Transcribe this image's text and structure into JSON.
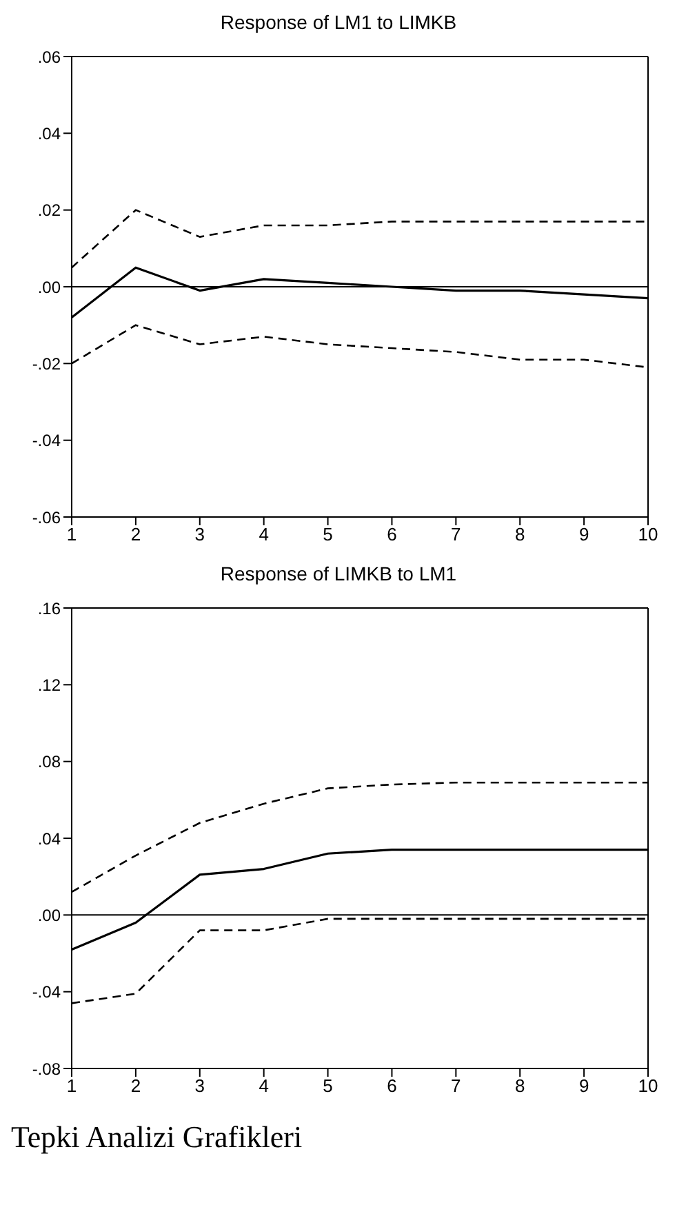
{
  "chart_data": [
    {
      "type": "line",
      "title": "Response of LM1 to LIMKB",
      "x": [
        1,
        2,
        3,
        4,
        5,
        6,
        7,
        8,
        9,
        10
      ],
      "series": [
        {
          "color": "#000000",
          "line_style": "solid",
          "values": [
            -0.008,
            0.005,
            -0.001,
            0.002,
            0.001,
            0.0,
            -0.001,
            -0.001,
            -0.002,
            -0.003
          ]
        },
        {
          "color": "#000000",
          "line_style": "dashed",
          "values": [
            0.005,
            0.02,
            0.013,
            0.016,
            0.016,
            0.017,
            0.017,
            0.017,
            0.017,
            0.017
          ]
        },
        {
          "color": "#000000",
          "line_style": "dashed",
          "values": [
            -0.02,
            -0.01,
            -0.015,
            -0.013,
            -0.015,
            -0.016,
            -0.017,
            -0.019,
            -0.019,
            -0.021
          ]
        }
      ],
      "xlim": [
        1,
        10
      ],
      "xticks": [
        1,
        2,
        3,
        4,
        5,
        6,
        7,
        8,
        9,
        10
      ],
      "ylim": [
        -0.06,
        0.06
      ],
      "yticks": [
        {
          "value": -0.06,
          "label": "-.06"
        },
        {
          "value": -0.04,
          "label": "-.04"
        },
        {
          "value": -0.02,
          "label": "-.02"
        },
        {
          "value": 0,
          "label": ".00"
        },
        {
          "value": 0.02,
          "label": ".02"
        },
        {
          "value": 0.04,
          "label": ".04"
        },
        {
          "value": 0.06,
          "label": ".06"
        }
      ],
      "ref_lines": [
        {
          "axis": "y",
          "value": 0,
          "color": "#000000"
        }
      ],
      "grid": false,
      "legend": false,
      "marker": "none"
    },
    {
      "type": "line",
      "title": "Response of LIMKB to LM1",
      "x": [
        1,
        2,
        3,
        4,
        5,
        6,
        7,
        8,
        9,
        10
      ],
      "series": [
        {
          "color": "#000000",
          "line_style": "solid",
          "values": [
            -0.018,
            -0.004,
            0.021,
            0.024,
            0.032,
            0.034,
            0.034,
            0.034,
            0.034,
            0.034
          ]
        },
        {
          "color": "#000000",
          "line_style": "dashed",
          "values": [
            0.012,
            0.031,
            0.048,
            0.058,
            0.066,
            0.068,
            0.069,
            0.069,
            0.069,
            0.069
          ]
        },
        {
          "color": "#000000",
          "line_style": "dashed",
          "values": [
            -0.046,
            -0.041,
            -0.008,
            -0.008,
            -0.002,
            -0.002,
            -0.002,
            -0.002,
            -0.002,
            -0.002
          ]
        }
      ],
      "xlim": [
        1,
        10
      ],
      "xticks": [
        1,
        2,
        3,
        4,
        5,
        6,
        7,
        8,
        9,
        10
      ],
      "ylim": [
        -0.08,
        0.16
      ],
      "yticks": [
        {
          "value": -0.08,
          "label": "-.08"
        },
        {
          "value": -0.04,
          "label": "-.04"
        },
        {
          "value": 0,
          "label": ".00"
        },
        {
          "value": 0.04,
          "label": ".04"
        },
        {
          "value": 0.08,
          "label": ".08"
        },
        {
          "value": 0.12,
          "label": ".12"
        },
        {
          "value": 0.16,
          "label": ".16"
        }
      ],
      "ref_lines": [
        {
          "axis": "y",
          "value": 0,
          "color": "#000000"
        }
      ],
      "annotations": [
        "Tepki Analizi Grafikleri"
      ],
      "grid": false,
      "legend": false,
      "marker": "none"
    }
  ]
}
